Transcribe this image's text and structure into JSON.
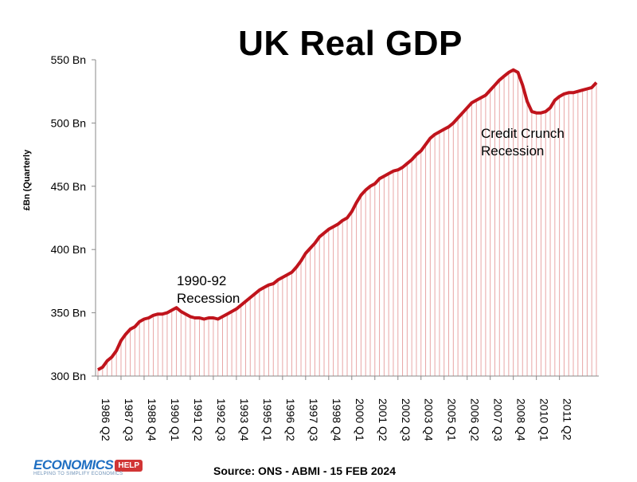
{
  "chart_data": {
    "type": "area",
    "title": "UK Real GDP",
    "ylabel": "£Bn (Quarterly",
    "xlabel": "",
    "ylim": [
      300,
      550
    ],
    "yticks": [
      300,
      350,
      400,
      450,
      500,
      550
    ],
    "ytick_labels": [
      "300 Bn",
      "350 Bn",
      "400 Bn",
      "450 Bn",
      "500 Bn",
      "550 Bn"
    ],
    "xtick_labels": [
      "1986 Q2",
      "1987 Q3",
      "1988 Q4",
      "1990 Q1",
      "1991 Q2",
      "1992 Q3",
      "1993 Q4",
      "1995 Q1",
      "1996 Q2",
      "1997 Q3",
      "1998 Q4",
      "2000 Q1",
      "2001 Q2",
      "2002 Q3",
      "2003 Q4",
      "2005 Q1",
      "2006 Q2",
      "2007 Q3",
      "2008 Q4",
      "2010 Q1",
      "2011 Q2"
    ],
    "grid": false,
    "line_color": "#c0141c",
    "fill_line_color": "#e8a6a6",
    "series": [
      {
        "values": [
          305,
          307,
          312,
          315,
          320,
          328,
          333,
          337,
          339,
          343,
          345,
          346,
          348,
          349,
          349,
          350,
          352,
          354,
          351,
          349,
          347,
          346,
          346,
          345,
          346,
          346,
          345,
          347,
          349,
          351,
          353,
          356,
          359,
          362,
          365,
          368,
          370,
          372,
          373,
          376,
          378,
          380,
          382,
          386,
          391,
          397,
          401,
          405,
          410,
          413,
          416,
          418,
          420,
          423,
          425,
          430,
          437,
          443,
          447,
          450,
          452,
          456,
          458,
          460,
          462,
          463,
          465,
          468,
          471,
          475,
          478,
          483,
          488,
          491,
          493,
          495,
          497,
          500,
          504,
          508,
          512,
          516,
          518,
          520,
          522,
          526,
          530,
          534,
          537,
          540,
          542,
          540,
          530,
          517,
          509,
          508,
          508,
          509,
          512,
          518,
          521,
          523,
          524,
          524,
          525,
          526,
          527,
          528,
          532
        ]
      }
    ],
    "annotations": [
      {
        "text_lines": [
          "1990-92",
          "Recession"
        ]
      },
      {
        "text_lines": [
          "Credit Crunch",
          "Recession"
        ]
      }
    ]
  },
  "footer": {
    "source": "Source: ONS - ABMI - 15 FEB 2024",
    "logo_word": "ECONOMICS",
    "logo_badge": "HELP",
    "logo_tagline": "HELPING TO SIMPLIFY ECONOMICS"
  }
}
